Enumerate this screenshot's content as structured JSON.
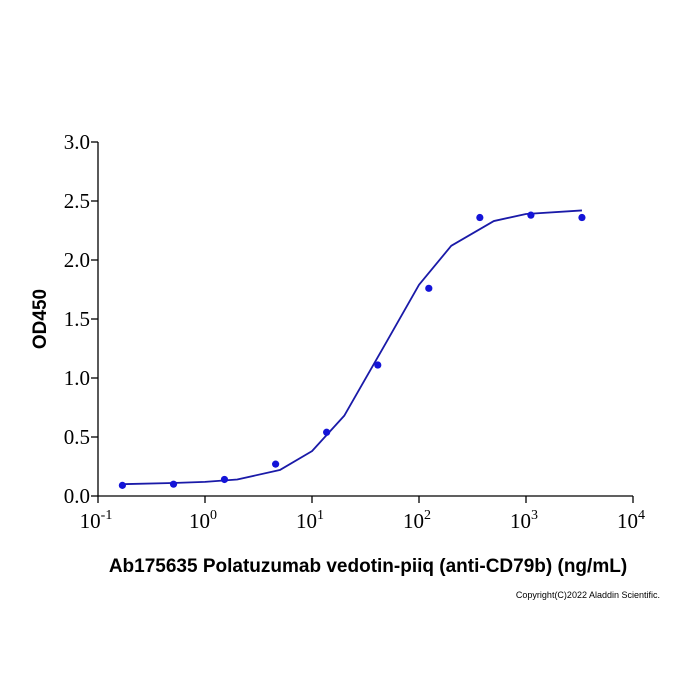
{
  "chart_data": {
    "type": "scatter",
    "xlabel": "Ab175635 Polatuzumab vedotin-piiq (anti-CD79b) (ng/mL)",
    "ylabel": "OD450",
    "copyright": "Copyright(C)2022 Aladdin Scientific.",
    "xscale": "log",
    "xlim": [
      0.1,
      10000
    ],
    "ylim": [
      0,
      3
    ],
    "xticks": [
      {
        "value": 0.1,
        "label": "10",
        "exponent": "-1"
      },
      {
        "value": 1,
        "label": "10",
        "exponent": "0"
      },
      {
        "value": 10,
        "label": "10",
        "exponent": "1"
      },
      {
        "value": 100,
        "label": "10",
        "exponent": "2"
      },
      {
        "value": 1000,
        "label": "10",
        "exponent": "3"
      },
      {
        "value": 10000,
        "label": "10",
        "exponent": "4"
      }
    ],
    "yticks": [
      {
        "value": 0,
        "label": "0.0"
      },
      0.5,
      {
        "value": 1,
        "label": "1.0"
      },
      1.5,
      {
        "value": 2,
        "label": "2.0"
      },
      2.5,
      {
        "value": 3,
        "label": "3.0"
      }
    ],
    "series": [
      {
        "color": "#1414d8",
        "x": [
          0.169,
          0.508,
          1.52,
          4.57,
          13.7,
          41.2,
          123.5,
          370.4,
          1111.1,
          3333.3
        ],
        "values": [
          0.09,
          0.1,
          0.14,
          0.27,
          0.54,
          1.11,
          1.76,
          2.36,
          2.38,
          2.36
        ]
      }
    ],
    "fit": {
      "color": "#1a1aa8",
      "x": [
        0.167,
        0.5,
        1,
        2,
        5,
        10,
        20,
        50,
        100,
        200,
        500,
        1000,
        3333
      ],
      "values": [
        0.1,
        0.11,
        0.12,
        0.14,
        0.22,
        0.38,
        0.68,
        1.31,
        1.79,
        2.12,
        2.33,
        2.39,
        2.42
      ]
    }
  }
}
